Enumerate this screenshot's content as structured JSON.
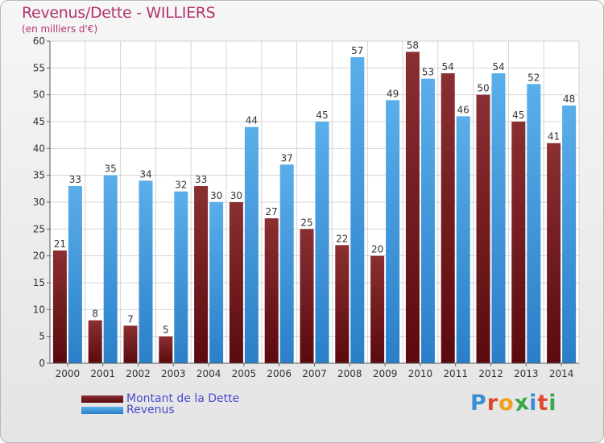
{
  "chart_data": {
    "type": "bar",
    "title": "Revenus/Dette - WILLIERS",
    "subtitle": "(en milliers d'€)",
    "categories": [
      "2000",
      "2001",
      "2002",
      "2003",
      "2004",
      "2005",
      "2006",
      "2007",
      "2008",
      "2009",
      "2010",
      "2011",
      "2012",
      "2013",
      "2014"
    ],
    "series": [
      {
        "name": "Montant de la Dette",
        "values": [
          21,
          8,
          7,
          5,
          33,
          30,
          27,
          25,
          22,
          20,
          58,
          54,
          50,
          45,
          41
        ],
        "color": "#6e1a1d"
      },
      {
        "name": "Revenus",
        "values": [
          33,
          35,
          34,
          32,
          30,
          44,
          37,
          45,
          57,
          49,
          53,
          46,
          54,
          52,
          48
        ],
        "color": "#3d95dd"
      }
    ],
    "ylim": [
      0,
      60
    ],
    "yticks": [
      0,
      5,
      10,
      15,
      20,
      25,
      30,
      35,
      40,
      45,
      50,
      55,
      60
    ],
    "grid": true,
    "legend_position": "bottom-left"
  },
  "branding": {
    "logo_letters": [
      "P",
      "r",
      "o",
      "x",
      "i",
      "t",
      "i"
    ],
    "logo_colors": [
      "#3a8fd6",
      "#e0482c",
      "#f0a020",
      "#3aa84a",
      "#3a8fd6",
      "#e0482c",
      "#3aa84a"
    ]
  }
}
